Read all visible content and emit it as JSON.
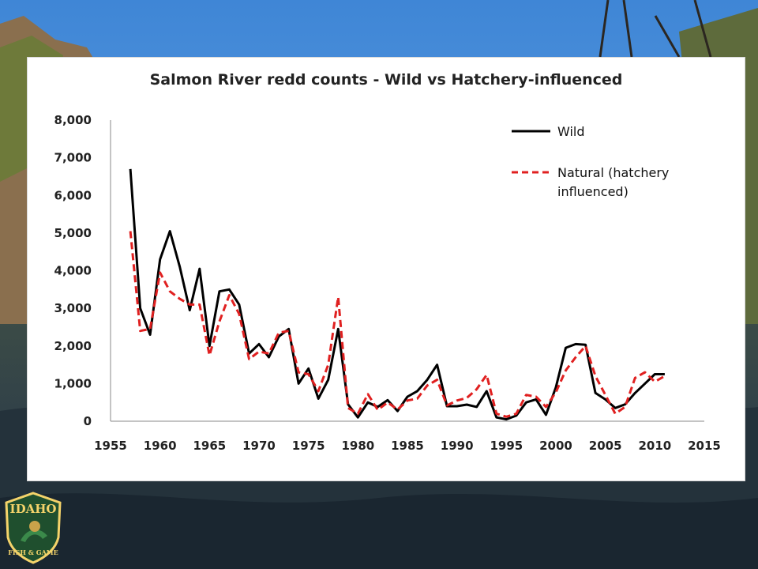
{
  "chart_data": {
    "type": "line",
    "title": "Salmon River redd counts - Wild vs Hatchery-influenced",
    "xlabel": "",
    "ylabel": "",
    "xlim": [
      1955,
      2015
    ],
    "ylim": [
      0,
      8000
    ],
    "x_ticks": [
      "1955",
      "1960",
      "1965",
      "1970",
      "1975",
      "1980",
      "1985",
      "1990",
      "1995",
      "2000",
      "2005",
      "2010",
      "2015"
    ],
    "y_ticks": [
      "0",
      "1,000",
      "2,000",
      "3,000",
      "4,000",
      "5,000",
      "6,000",
      "7,000",
      "8,000"
    ],
    "legend_position": "top-right",
    "grid": false,
    "series": [
      {
        "name": "Wild",
        "color": "#000000",
        "style": "solid",
        "points": [
          [
            1957,
            6700
          ],
          [
            1958,
            3000
          ],
          [
            1959,
            2300
          ],
          [
            1960,
            4300
          ],
          [
            1961,
            5050
          ],
          [
            1962,
            4100
          ],
          [
            1963,
            2950
          ],
          [
            1964,
            4050
          ],
          [
            1965,
            2000
          ],
          [
            1966,
            3450
          ],
          [
            1967,
            3500
          ],
          [
            1968,
            3100
          ],
          [
            1969,
            1800
          ],
          [
            1970,
            2050
          ],
          [
            1971,
            1700
          ],
          [
            1972,
            2250
          ],
          [
            1973,
            2450
          ],
          [
            1974,
            1000
          ],
          [
            1975,
            1400
          ],
          [
            1976,
            600
          ],
          [
            1977,
            1100
          ],
          [
            1978,
            2450
          ],
          [
            1979,
            450
          ],
          [
            1980,
            100
          ],
          [
            1981,
            500
          ],
          [
            1982,
            380
          ],
          [
            1983,
            560
          ],
          [
            1984,
            270
          ],
          [
            1985,
            650
          ],
          [
            1986,
            800
          ],
          [
            1987,
            1100
          ],
          [
            1988,
            1500
          ],
          [
            1989,
            400
          ],
          [
            1990,
            400
          ],
          [
            1991,
            440
          ],
          [
            1992,
            380
          ],
          [
            1993,
            800
          ],
          [
            1994,
            100
          ],
          [
            1995,
            50
          ],
          [
            1996,
            150
          ],
          [
            1997,
            500
          ],
          [
            1998,
            580
          ],
          [
            1999,
            170
          ],
          [
            2000,
            900
          ],
          [
            2001,
            1950
          ],
          [
            2002,
            2050
          ],
          [
            2003,
            2030
          ],
          [
            2004,
            750
          ],
          [
            2005,
            580
          ],
          [
            2006,
            350
          ],
          [
            2007,
            450
          ],
          [
            2008,
            750
          ],
          [
            2009,
            1000
          ],
          [
            2010,
            1250
          ],
          [
            2011,
            1250
          ]
        ]
      },
      {
        "name": "Natural (hatchery influenced)",
        "color": "#e02020",
        "style": "dashed",
        "points": [
          [
            1957,
            5050
          ],
          [
            1958,
            2400
          ],
          [
            1959,
            2450
          ],
          [
            1960,
            3950
          ],
          [
            1961,
            3450
          ],
          [
            1962,
            3250
          ],
          [
            1963,
            3100
          ],
          [
            1964,
            3100
          ],
          [
            1965,
            1750
          ],
          [
            1966,
            2650
          ],
          [
            1967,
            3350
          ],
          [
            1968,
            2850
          ],
          [
            1969,
            1650
          ],
          [
            1970,
            1850
          ],
          [
            1971,
            1800
          ],
          [
            1972,
            2350
          ],
          [
            1973,
            2400
          ],
          [
            1974,
            1300
          ],
          [
            1975,
            1250
          ],
          [
            1976,
            800
          ],
          [
            1977,
            1500
          ],
          [
            1978,
            3300
          ],
          [
            1979,
            350
          ],
          [
            1980,
            200
          ],
          [
            1981,
            720
          ],
          [
            1982,
            300
          ],
          [
            1983,
            500
          ],
          [
            1984,
            310
          ],
          [
            1985,
            550
          ],
          [
            1986,
            600
          ],
          [
            1987,
            950
          ],
          [
            1988,
            1100
          ],
          [
            1989,
            420
          ],
          [
            1990,
            550
          ],
          [
            1991,
            620
          ],
          [
            1992,
            850
          ],
          [
            1993,
            1230
          ],
          [
            1994,
            200
          ],
          [
            1995,
            120
          ],
          [
            1996,
            200
          ],
          [
            1997,
            700
          ],
          [
            1998,
            650
          ],
          [
            1999,
            380
          ],
          [
            2000,
            770
          ],
          [
            2001,
            1350
          ],
          [
            2002,
            1700
          ],
          [
            2003,
            2000
          ],
          [
            2004,
            1200
          ],
          [
            2005,
            700
          ],
          [
            2006,
            200
          ],
          [
            2007,
            380
          ],
          [
            2008,
            1150
          ],
          [
            2009,
            1300
          ],
          [
            2010,
            1050
          ],
          [
            2011,
            1200
          ]
        ]
      }
    ]
  },
  "logo": {
    "line1": "IDAHO",
    "line2": "FISH & GAME"
  }
}
